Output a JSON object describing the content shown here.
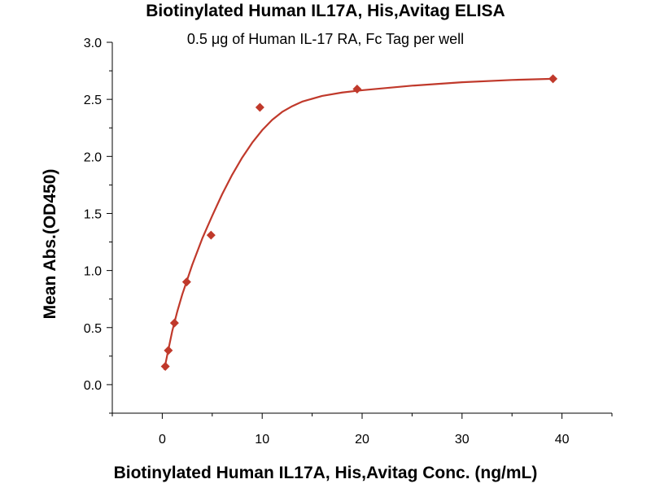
{
  "chart_data": {
    "type": "scatter",
    "title": "Biotinylated Human IL17A, His,Avitag ELISA",
    "subtitle": "0.5 μg of Human IL-17 RA, Fc Tag per well",
    "xlabel": "Biotinylated Human IL17A, His,Avitag Conc. (ng/mL)",
    "ylabel": "Mean Abs.(OD450)",
    "xlim": [
      -5,
      45
    ],
    "ylim": [
      -0.25,
      3.0
    ],
    "x_ticks": [
      0,
      10,
      20,
      30,
      40
    ],
    "x_tick_labels": [
      "0",
      "10",
      "20",
      "30",
      "40"
    ],
    "y_ticks": [
      0.0,
      0.5,
      1.0,
      1.5,
      2.0,
      2.5,
      3.0
    ],
    "y_tick_labels": [
      "0.0",
      "0.5",
      "1.0",
      "1.5",
      "2.0",
      "2.5",
      "3.0"
    ],
    "grid": false,
    "marker": "diamond",
    "color": "#c0392b",
    "series": [
      {
        "x": [
          0.305,
          0.61,
          1.22,
          2.44,
          4.88,
          9.77,
          19.5,
          39.1
        ],
        "y": [
          0.16,
          0.3,
          0.54,
          0.9,
          1.31,
          2.43,
          2.59,
          2.68
        ]
      }
    ],
    "fit_curve": {
      "type": "4PL",
      "x": [
        0.2,
        0.5,
        1,
        1.5,
        2,
        3,
        4,
        5,
        6,
        7,
        8,
        9,
        10,
        11,
        12,
        13,
        14,
        16,
        18,
        20,
        25,
        30,
        35,
        39.1
      ],
      "y": [
        0.13,
        0.26,
        0.47,
        0.64,
        0.79,
        1.05,
        1.28,
        1.48,
        1.67,
        1.84,
        1.99,
        2.12,
        2.23,
        2.32,
        2.39,
        2.44,
        2.48,
        2.53,
        2.56,
        2.58,
        2.62,
        2.65,
        2.67,
        2.68
      ]
    }
  }
}
